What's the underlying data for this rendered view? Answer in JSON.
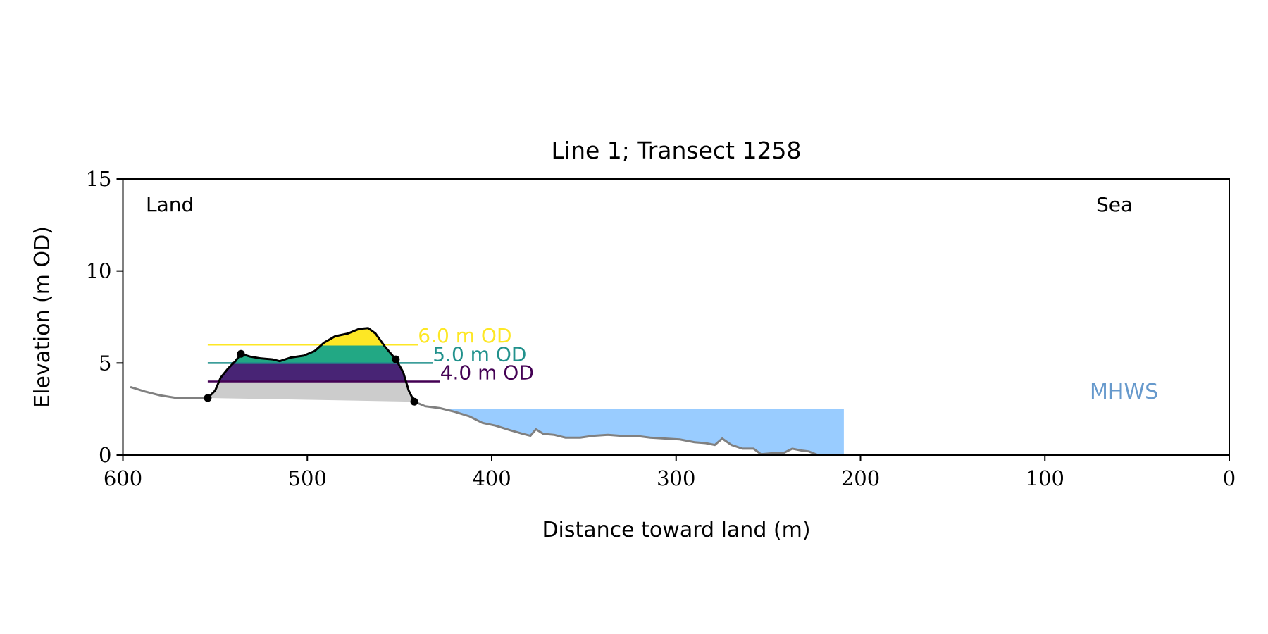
{
  "chart_data": {
    "type": "area",
    "title": "Line 1; Transect 1258",
    "xlabel": "Distance toward land (m)",
    "ylabel": "Elevation (m OD)",
    "xlim": [
      600,
      0
    ],
    "ylim": [
      0,
      15
    ],
    "xticks": [
      "600",
      "500",
      "400",
      "300",
      "200",
      "100",
      "0"
    ],
    "xtick_values": [
      600,
      500,
      400,
      300,
      200,
      100,
      0
    ],
    "yticks": [
      "0",
      "5",
      "10",
      "15"
    ],
    "ytick_values": [
      0,
      5,
      10,
      15
    ],
    "grid": false,
    "annotations": {
      "land": "Land",
      "sea": "Sea",
      "mhws": "MHWS"
    },
    "colors": {
      "ground": "#808080",
      "dune": "#000000",
      "base_fill": "#cccccc",
      "water": "#99ccff",
      "mhws_text": "#6699cc",
      "level_4": "#440154",
      "level_4_fill": "#482475",
      "level_5": "#21918c",
      "level_5_fill": "#22a884",
      "level_6": "#fde725"
    },
    "mhws": {
      "value": 2.5,
      "x_range": [
        425,
        209
      ]
    },
    "levels": [
      {
        "value": 4.0,
        "label": "4.0 m OD"
      },
      {
        "value": 5.0,
        "label": "5.0 m OD"
      },
      {
        "value": 6.0,
        "label": "6.0 m OD"
      }
    ],
    "ground_profile": [
      [
        596,
        3.7
      ],
      [
        588,
        3.45
      ],
      [
        580,
        3.25
      ],
      [
        572,
        3.12
      ],
      [
        565,
        3.1
      ],
      [
        555,
        3.1
      ],
      [
        554,
        3.1
      ],
      [
        442,
        2.9
      ],
      [
        436,
        2.65
      ],
      [
        428,
        2.55
      ],
      [
        420,
        2.35
      ],
      [
        412,
        2.1
      ],
      [
        405,
        1.75
      ],
      [
        398,
        1.6
      ],
      [
        390,
        1.35
      ],
      [
        383,
        1.15
      ],
      [
        379,
        1.05
      ],
      [
        376,
        1.4
      ],
      [
        372,
        1.15
      ],
      [
        366,
        1.1
      ],
      [
        360,
        0.95
      ],
      [
        352,
        0.95
      ],
      [
        345,
        1.05
      ],
      [
        337,
        1.1
      ],
      [
        330,
        1.05
      ],
      [
        322,
        1.05
      ],
      [
        314,
        0.95
      ],
      [
        306,
        0.9
      ],
      [
        298,
        0.85
      ],
      [
        290,
        0.7
      ],
      [
        284,
        0.65
      ],
      [
        279,
        0.55
      ],
      [
        275,
        0.9
      ],
      [
        270,
        0.55
      ],
      [
        264,
        0.35
      ],
      [
        258,
        0.35
      ],
      [
        254,
        0.05
      ],
      [
        248,
        0.1
      ],
      [
        242,
        0.1
      ],
      [
        237,
        0.35
      ],
      [
        232,
        0.25
      ],
      [
        228,
        0.2
      ],
      [
        223,
        0.0
      ],
      [
        212,
        0.0
      ]
    ],
    "dune_profile": [
      [
        554,
        3.1
      ],
      [
        550,
        3.5
      ],
      [
        547,
        4.2
      ],
      [
        543,
        4.7
      ],
      [
        539,
        5.1
      ],
      [
        536,
        5.5
      ],
      [
        531,
        5.35
      ],
      [
        525,
        5.25
      ],
      [
        519,
        5.2
      ],
      [
        515,
        5.1
      ],
      [
        509,
        5.3
      ],
      [
        502,
        5.4
      ],
      [
        496,
        5.65
      ],
      [
        491,
        6.1
      ],
      [
        485,
        6.45
      ],
      [
        478,
        6.6
      ],
      [
        472,
        6.85
      ],
      [
        467,
        6.9
      ],
      [
        463,
        6.6
      ],
      [
        458,
        5.9
      ],
      [
        452,
        5.2
      ],
      [
        448,
        4.5
      ],
      [
        445,
        3.5
      ],
      [
        442,
        2.9
      ]
    ],
    "dune_points": [
      [
        554,
        3.1
      ],
      [
        536,
        5.5
      ],
      [
        452,
        5.2
      ],
      [
        442,
        2.9
      ]
    ],
    "level_line_ends": [
      428,
      432,
      440
    ]
  }
}
